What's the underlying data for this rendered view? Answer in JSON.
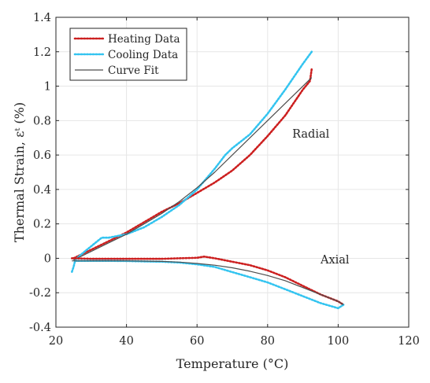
{
  "chart_data": {
    "type": "line",
    "title": "",
    "xlabel": "Temperature (°C)",
    "ylabel": "Thermal Strain, εᵗ (%)",
    "xlim": [
      20,
      120
    ],
    "ylim": [
      -0.4,
      1.4
    ],
    "xticks": [
      "20",
      "40",
      "60",
      "80",
      "100",
      "120"
    ],
    "yticks": [
      "-0.4",
      "-0.2",
      "0",
      "0.2",
      "0.4",
      "0.6",
      "0.8",
      "1",
      "1.2",
      "1.4"
    ],
    "grid": true,
    "legend_position": "top-left",
    "annotations": [
      {
        "text": "Radial",
        "x": 87,
        "y": 0.7
      },
      {
        "text": "Axial",
        "x": 95,
        "y": -0.03
      }
    ],
    "series": [
      {
        "name": "Heating Data",
        "style": "dotted",
        "color": "#cc1f1f",
        "x": [
          25,
          30,
          35,
          40,
          45,
          50,
          55,
          60,
          65,
          70,
          75,
          80,
          85,
          90,
          92,
          92.5
        ],
        "y": [
          0,
          0.05,
          0.1,
          0.15,
          0.21,
          0.27,
          0.32,
          0.38,
          0.44,
          0.51,
          0.6,
          0.71,
          0.83,
          0.98,
          1.03,
          1.1
        ]
      },
      {
        "name": "Cooling Data",
        "style": "dotted",
        "color": "#33c4f0",
        "x": [
          92.5,
          90,
          85,
          80,
          75,
          70,
          68,
          65,
          60,
          55,
          50,
          45,
          40,
          35,
          33,
          30,
          27,
          25.5,
          25,
          24.5
        ],
        "y": [
          1.2,
          1.13,
          0.98,
          0.84,
          0.72,
          0.64,
          0.6,
          0.52,
          0.4,
          0.31,
          0.24,
          0.18,
          0.14,
          0.12,
          0.12,
          0.07,
          0.02,
          -0.01,
          -0.05,
          -0.08
        ]
      },
      {
        "name": "Curve Fit",
        "style": "solid",
        "color": "#4d4d4d",
        "x": [
          25,
          30,
          35,
          40,
          45,
          50,
          55,
          60,
          65,
          70,
          75,
          80,
          85,
          90,
          92.5
        ],
        "y": [
          -0.01,
          0.04,
          0.09,
          0.14,
          0.2,
          0.26,
          0.33,
          0.41,
          0.5,
          0.6,
          0.7,
          0.8,
          0.9,
          1.0,
          1.05
        ]
      },
      {
        "name": "",
        "style": "dotted",
        "color": "#cc1f1f",
        "x": [
          24.5,
          30,
          40,
          50,
          55,
          60,
          62,
          65,
          70,
          75,
          80,
          85,
          90,
          95,
          100,
          101.5
        ],
        "y": [
          0,
          -0.003,
          -0.003,
          -0.003,
          0.0,
          0.003,
          0.01,
          0.0,
          -0.02,
          -0.04,
          -0.07,
          -0.11,
          -0.16,
          -0.21,
          -0.25,
          -0.27
        ]
      },
      {
        "name": "",
        "style": "dotted",
        "color": "#33c4f0",
        "x": [
          101.5,
          100,
          95,
          90,
          85,
          80,
          75,
          70,
          65,
          60,
          55,
          50,
          45,
          40,
          35,
          30,
          25
        ],
        "y": [
          -0.27,
          -0.29,
          -0.26,
          -0.22,
          -0.18,
          -0.14,
          -0.11,
          -0.08,
          -0.05,
          -0.035,
          -0.025,
          -0.02,
          -0.018,
          -0.016,
          -0.015,
          -0.015,
          -0.015
        ]
      },
      {
        "name": "",
        "style": "solid",
        "color": "#4d4d4d",
        "x": [
          24.5,
          30,
          40,
          50,
          55,
          60,
          65,
          70,
          75,
          80,
          85,
          90,
          95,
          100,
          101.5
        ],
        "y": [
          -0.015,
          -0.015,
          -0.015,
          -0.018,
          -0.022,
          -0.03,
          -0.04,
          -0.055,
          -0.075,
          -0.1,
          -0.13,
          -0.17,
          -0.21,
          -0.25,
          -0.27
        ]
      }
    ]
  }
}
